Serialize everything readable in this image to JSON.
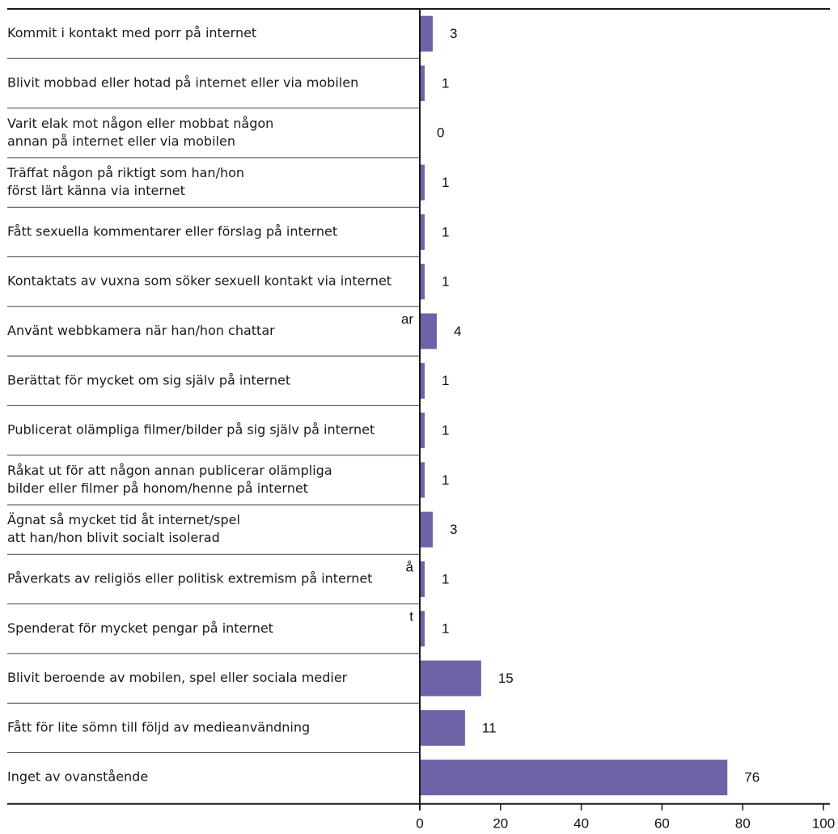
{
  "chart_data": {
    "type": "bar",
    "orientation": "horizontal",
    "categories": [
      [
        "Kommit i kontakt med porr på internet"
      ],
      [
        "Blivit mobbad eller hotad på internet eller via mobilen"
      ],
      [
        "Varit elak mot någon eller mobbat någon",
        "annan på internet eller via mobilen"
      ],
      [
        "Träffat någon på riktigt som han/hon",
        "först lärt känna via internet"
      ],
      [
        "Fått sexuella kommentarer eller förslag på internet"
      ],
      [
        "Kontaktats av vuxna som söker sexuell kontakt via internet"
      ],
      [
        "Använt webbkamera när han/hon chattar"
      ],
      [
        "Berättat för mycket om sig själv på internet"
      ],
      [
        "Publicerat olämpliga filmer/bilder på sig själv på internet"
      ],
      [
        "Råkat ut för att någon annan publicerar olämpliga",
        "bilder eller filmer på honom/henne på internet"
      ],
      [
        "Ägnat så mycket tid åt internet/spel",
        "att han/hon blivit socialt isolerad"
      ],
      [
        "Påverkats av religiös eller politisk extremism på internet"
      ],
      [
        "Spenderat för mycket pengar på internet"
      ],
      [
        "Blivit beroende av mobilen, spel eller sociala medier"
      ],
      [
        "Fått för lite sömn till följd av medieanvändning"
      ],
      [
        "Inget av ovanstående"
      ]
    ],
    "values": [
      3,
      1,
      0,
      1,
      1,
      1,
      4,
      1,
      1,
      1,
      3,
      1,
      1,
      15,
      11,
      76
    ],
    "value_labels": [
      "3",
      "1",
      "0",
      "1",
      "1",
      "1",
      "4",
      "1",
      "1",
      "1",
      "3",
      "1",
      "1",
      "15",
      "11",
      "76"
    ],
    "xlim": [
      0,
      100
    ],
    "x_ticks": [
      "0",
      "20",
      "40",
      "60",
      "80",
      "100"
    ],
    "x_tick_values": [
      0,
      20,
      40,
      60,
      80,
      100
    ],
    "stray_marks": [
      {
        "row": 6,
        "text": "ar"
      },
      {
        "row": 11,
        "text": "å"
      },
      {
        "row": 12,
        "text": "t"
      }
    ],
    "grid": false,
    "legend": "none",
    "bar_color": "#6e62a6",
    "axis_color": "#1a1a1a",
    "separator_color": "#444444"
  }
}
